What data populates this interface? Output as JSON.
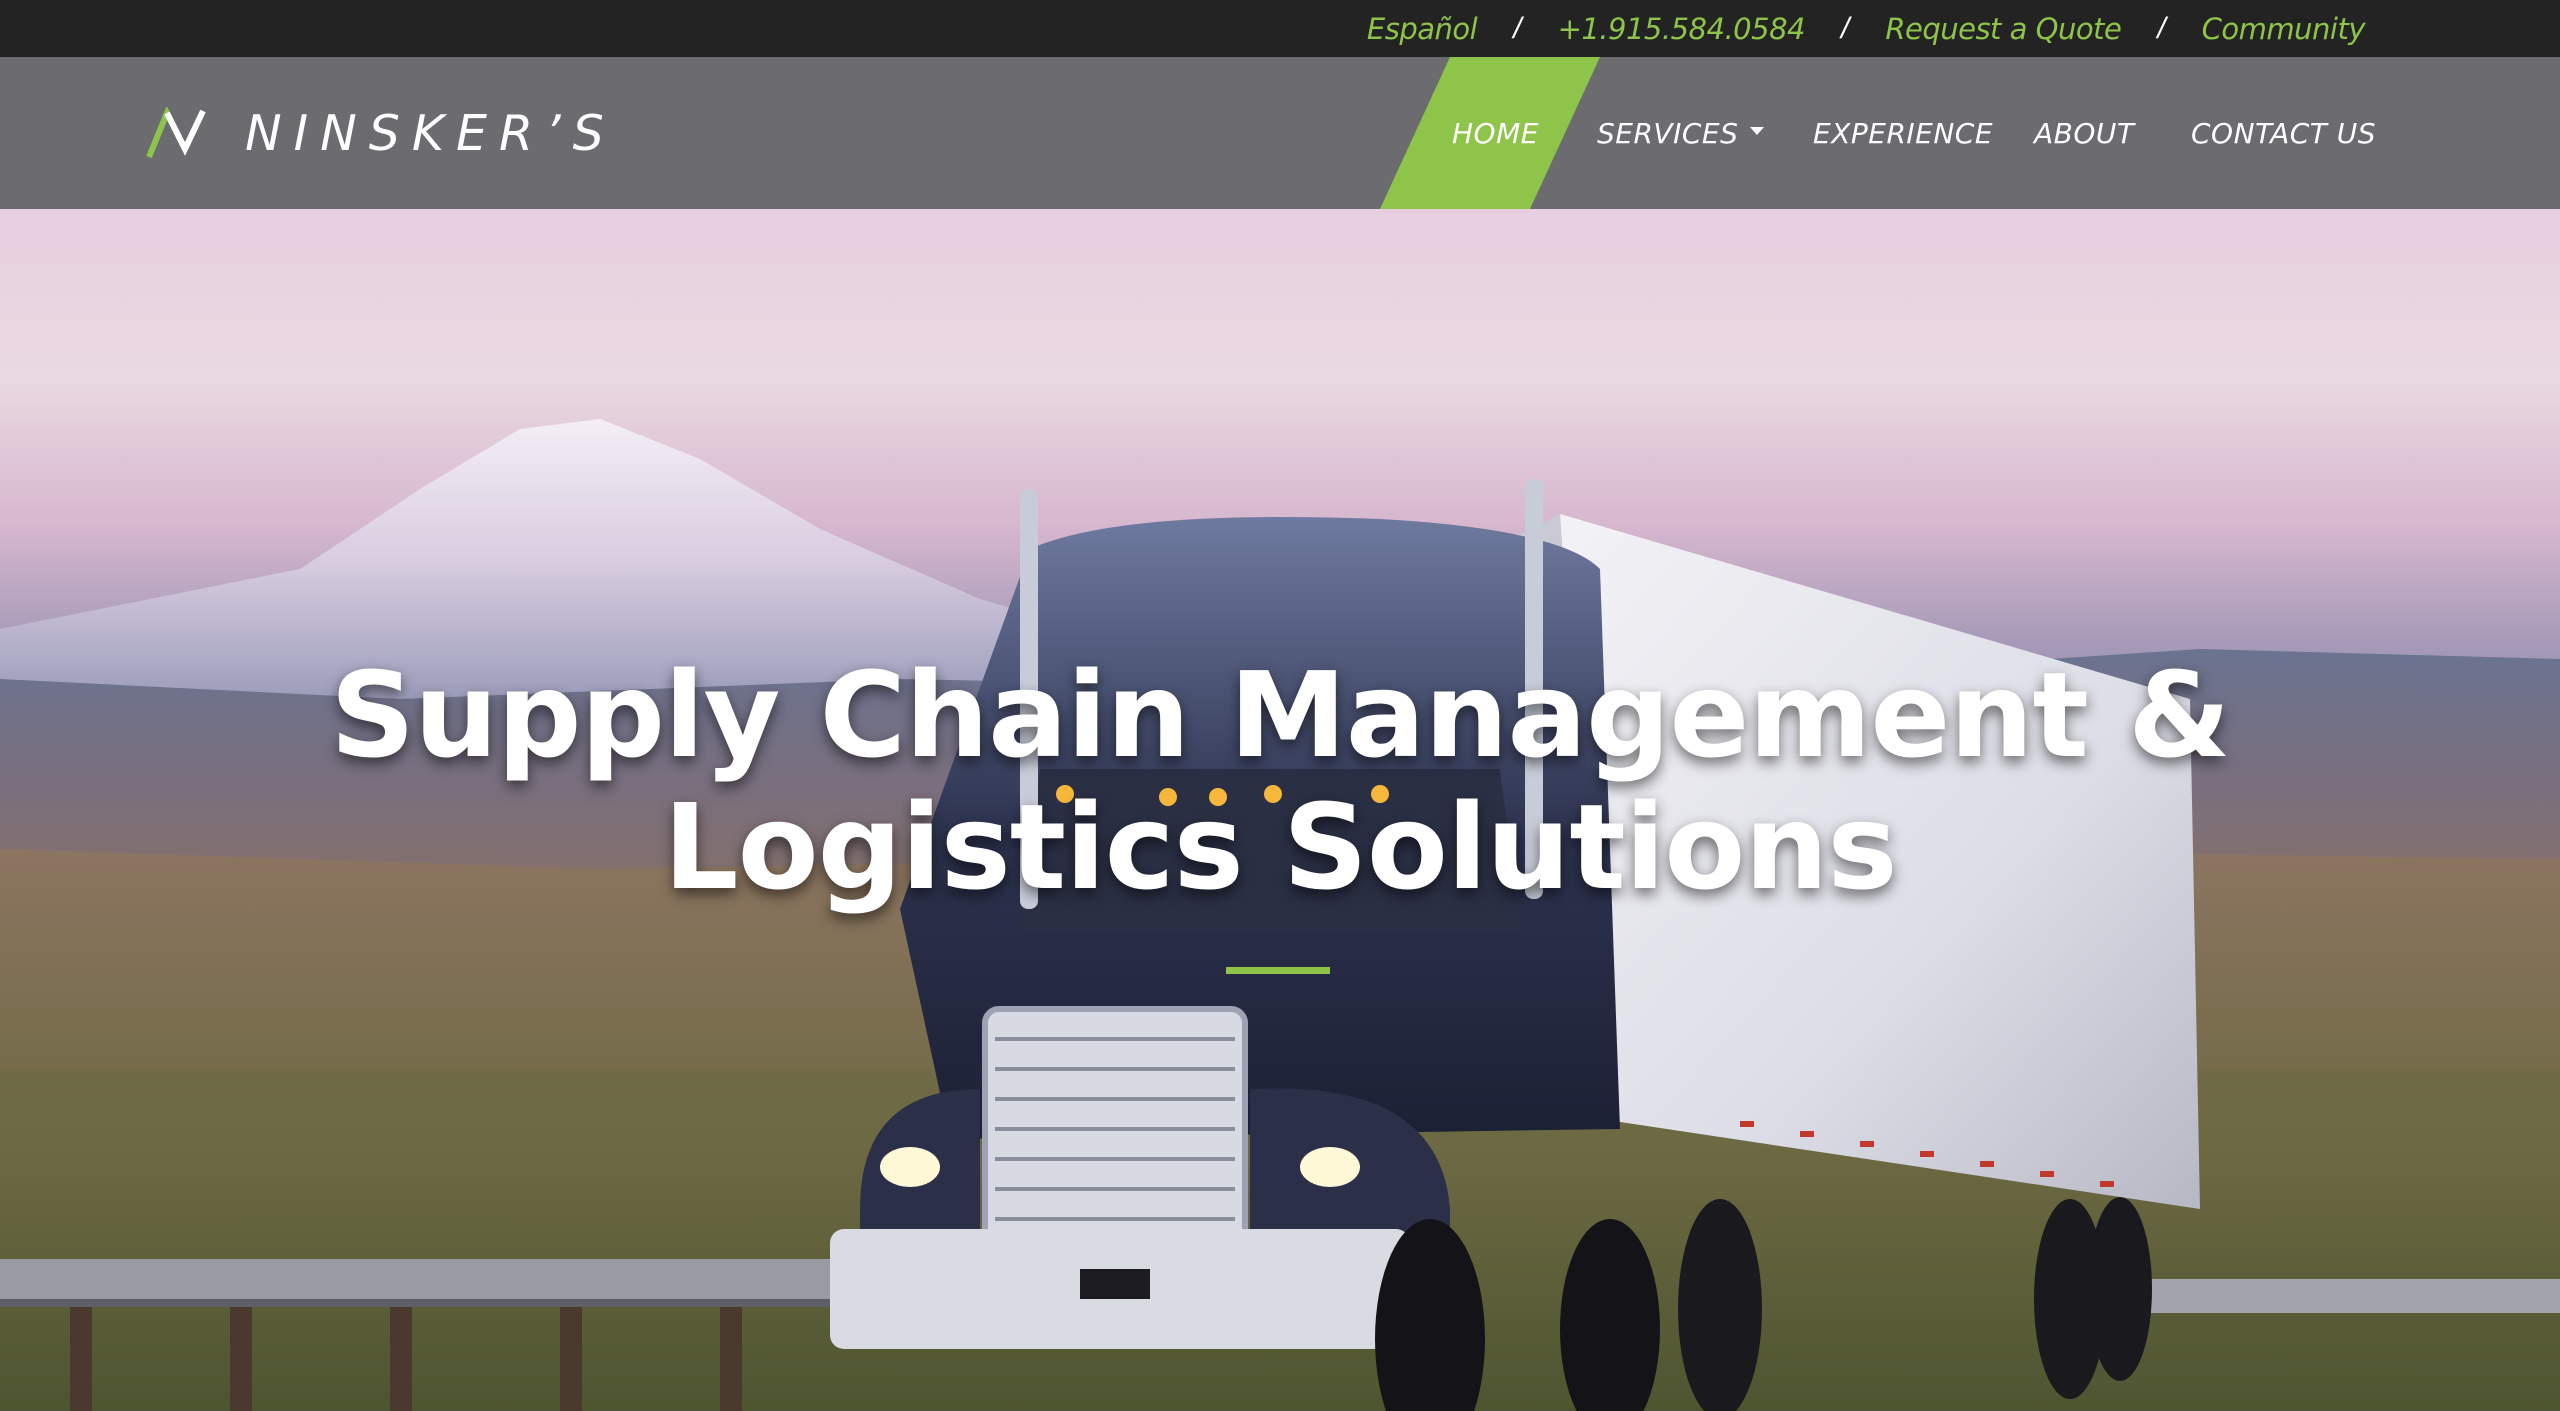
{
  "topbar": {
    "links": [
      "Español",
      "+1.915.584.0584",
      "Request a Quote",
      "Community"
    ],
    "separator": "/"
  },
  "brand": {
    "name": "NINSKER’S"
  },
  "nav": {
    "items": [
      "HOME",
      "SERVICES",
      "EXPERIENCE",
      "ABOUT",
      "CONTACT US"
    ],
    "active": "HOME"
  },
  "hero": {
    "title_line1": "Supply Chain Management &",
    "title_line2": "Logistics Solutions"
  },
  "colors": {
    "accent": "#8dc449",
    "topbar_bg": "#232323",
    "navbar_bg": "#6b6b70",
    "text_light": "#ffffff"
  },
  "icons": {
    "logo_mark": "ninsker-logo-icon",
    "services_caret": "caret-down-icon"
  }
}
